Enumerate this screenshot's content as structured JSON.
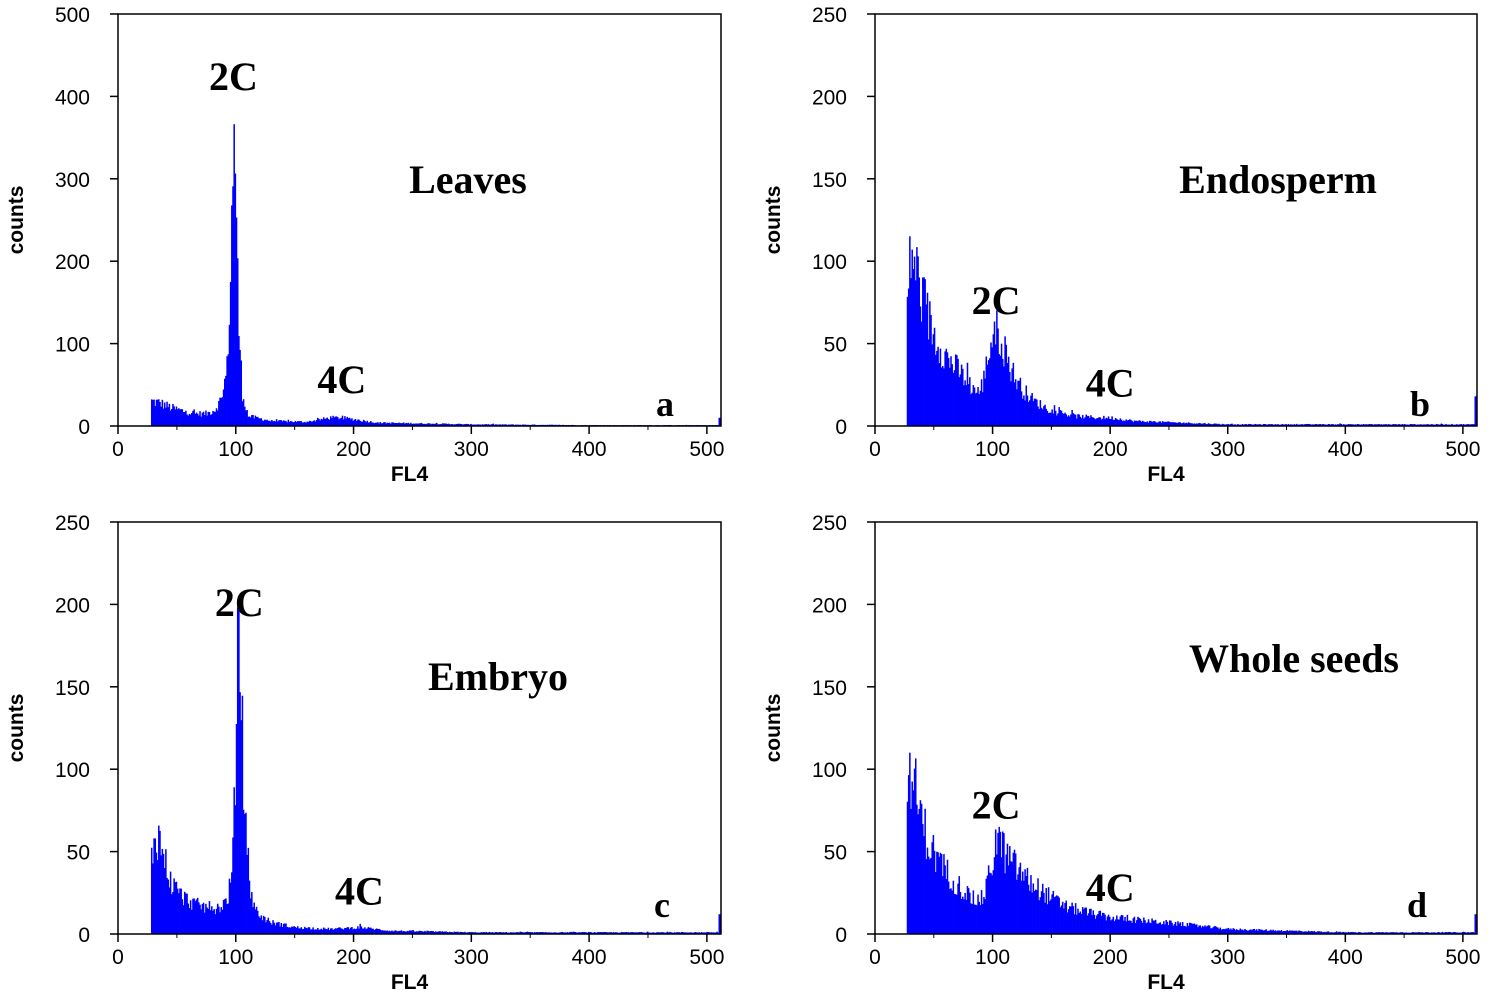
{
  "chart_data": [
    {
      "type": "bar",
      "panel": "a",
      "sample_label": "Leaves",
      "xlabel": "FL4",
      "ylabel": "counts",
      "xlim": [
        0,
        512
      ],
      "ylim": [
        0,
        500
      ],
      "xticks": [
        0,
        100,
        200,
        300,
        400,
        500
      ],
      "yticks": [
        0,
        100,
        200,
        300,
        400,
        500
      ],
      "color": "#0000ff",
      "annotations": [
        {
          "text": "2C",
          "x": 98,
          "y": 408
        },
        {
          "text": "4C",
          "x": 190,
          "y": 40
        }
      ],
      "profile": {
        "start": 28,
        "points": [
          [
            28,
            30
          ],
          [
            35,
            28
          ],
          [
            45,
            22
          ],
          [
            55,
            18
          ],
          [
            65,
            15
          ],
          [
            75,
            15
          ],
          [
            82,
            20
          ],
          [
            88,
            35
          ],
          [
            92,
            70
          ],
          [
            95,
            180
          ],
          [
            97,
            310
          ],
          [
            98,
            400
          ],
          [
            99,
            300
          ],
          [
            100,
            230
          ],
          [
            102,
            120
          ],
          [
            105,
            40
          ],
          [
            110,
            12
          ],
          [
            130,
            6
          ],
          [
            160,
            5
          ],
          [
            180,
            10
          ],
          [
            190,
            10
          ],
          [
            200,
            8
          ],
          [
            220,
            4
          ],
          [
            300,
            2
          ],
          [
            400,
            1
          ],
          [
            505,
            1
          ]
        ],
        "end_spike": 10
      }
    },
    {
      "type": "bar",
      "panel": "b",
      "sample_label": "Endosperm",
      "xlabel": "FL4",
      "ylabel": "counts",
      "xlim": [
        0,
        512
      ],
      "ylim": [
        0,
        250
      ],
      "xticks": [
        0,
        100,
        200,
        300,
        400,
        500
      ],
      "yticks": [
        0,
        50,
        100,
        150,
        200,
        250
      ],
      "color": "#0000ff",
      "annotations": [
        {
          "text": "2C",
          "x": 103,
          "y": 68
        },
        {
          "text": "4C",
          "x": 200,
          "y": 18
        }
      ],
      "profile": {
        "start": 27,
        "points": [
          [
            27,
            75
          ],
          [
            30,
            105
          ],
          [
            33,
            100
          ],
          [
            36,
            90
          ],
          [
            40,
            75
          ],
          [
            50,
            55
          ],
          [
            60,
            42
          ],
          [
            70,
            34
          ],
          [
            80,
            25
          ],
          [
            88,
            20
          ],
          [
            92,
            28
          ],
          [
            96,
            45
          ],
          [
            100,
            55
          ],
          [
            104,
            58
          ],
          [
            108,
            50
          ],
          [
            112,
            40
          ],
          [
            118,
            30
          ],
          [
            125,
            22
          ],
          [
            135,
            15
          ],
          [
            150,
            9
          ],
          [
            170,
            6
          ],
          [
            190,
            5
          ],
          [
            200,
            5
          ],
          [
            220,
            3
          ],
          [
            300,
            1
          ],
          [
            400,
            1
          ],
          [
            505,
            1
          ]
        ],
        "end_spike": 18
      }
    },
    {
      "type": "bar",
      "panel": "c",
      "sample_label": "Embryo",
      "xlabel": "FL4",
      "ylabel": "counts",
      "xlim": [
        0,
        512
      ],
      "ylim": [
        0,
        250
      ],
      "xticks": [
        0,
        100,
        200,
        300,
        400,
        500
      ],
      "yticks": [
        0,
        50,
        100,
        150,
        200,
        250
      ],
      "color": "#0000ff",
      "annotations": [
        {
          "text": "2C",
          "x": 103,
          "y": 193
        },
        {
          "text": "4C",
          "x": 205,
          "y": 18
        }
      ],
      "profile": {
        "start": 28,
        "points": [
          [
            28,
            45
          ],
          [
            31,
            62
          ],
          [
            34,
            58
          ],
          [
            38,
            48
          ],
          [
            45,
            30
          ],
          [
            55,
            22
          ],
          [
            65,
            18
          ],
          [
            75,
            16
          ],
          [
            85,
            16
          ],
          [
            92,
            20
          ],
          [
            96,
            35
          ],
          [
            99,
            90
          ],
          [
            101,
            160
          ],
          [
            102,
            185
          ],
          [
            103,
            170
          ],
          [
            105,
            120
          ],
          [
            108,
            60
          ],
          [
            112,
            25
          ],
          [
            118,
            12
          ],
          [
            130,
            7
          ],
          [
            150,
            4
          ],
          [
            180,
            3
          ],
          [
            205,
            4
          ],
          [
            230,
            2
          ],
          [
            300,
            1
          ],
          [
            400,
            1
          ],
          [
            505,
            1
          ]
        ],
        "end_spike": 12
      }
    },
    {
      "type": "bar",
      "panel": "d",
      "sample_label": "Whole seeds",
      "xlabel": "FL4",
      "ylabel": "counts",
      "xlim": [
        0,
        512
      ],
      "ylim": [
        0,
        250
      ],
      "xticks": [
        0,
        100,
        200,
        300,
        400,
        500
      ],
      "yticks": [
        0,
        50,
        100,
        150,
        200,
        250
      ],
      "color": "#0000ff",
      "annotations": [
        {
          "text": "2C",
          "x": 103,
          "y": 70
        },
        {
          "text": "4C",
          "x": 200,
          "y": 20
        }
      ],
      "profile": {
        "start": 27,
        "points": [
          [
            27,
            70
          ],
          [
            30,
            100
          ],
          [
            33,
            90
          ],
          [
            37,
            75
          ],
          [
            45,
            55
          ],
          [
            55,
            42
          ],
          [
            65,
            34
          ],
          [
            75,
            26
          ],
          [
            85,
            20
          ],
          [
            92,
            22
          ],
          [
            98,
            40
          ],
          [
            102,
            55
          ],
          [
            105,
            58
          ],
          [
            110,
            48
          ],
          [
            120,
            40
          ],
          [
            130,
            32
          ],
          [
            145,
            24
          ],
          [
            160,
            17
          ],
          [
            180,
            13
          ],
          [
            200,
            10
          ],
          [
            230,
            8
          ],
          [
            260,
            6
          ],
          [
            300,
            3
          ],
          [
            350,
            2
          ],
          [
            400,
            1
          ],
          [
            505,
            1
          ]
        ],
        "end_spike": 12
      }
    }
  ]
}
